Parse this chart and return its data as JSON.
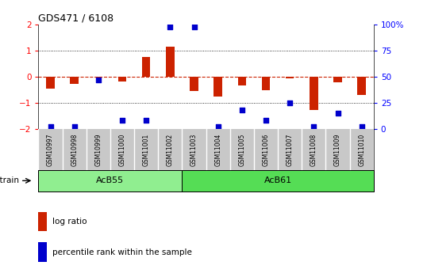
{
  "title": "GDS471 / 6108",
  "samples": [
    "GSM10997",
    "GSM10998",
    "GSM10999",
    "GSM11000",
    "GSM11001",
    "GSM11002",
    "GSM11003",
    "GSM11004",
    "GSM11005",
    "GSM11006",
    "GSM11007",
    "GSM11008",
    "GSM11009",
    "GSM11010"
  ],
  "log_ratio": [
    -0.45,
    -0.28,
    -0.04,
    -0.18,
    0.75,
    1.15,
    -0.55,
    -0.78,
    -0.35,
    -0.52,
    -0.06,
    -1.28,
    -0.22,
    -0.72
  ],
  "percentile_rank": [
    2,
    2,
    47,
    8,
    8,
    98,
    98,
    2,
    18,
    8,
    25,
    2,
    15,
    2
  ],
  "groups": [
    {
      "label": "AcB55",
      "start": 0,
      "end": 5,
      "color": "#90EE90"
    },
    {
      "label": "AcB61",
      "start": 6,
      "end": 13,
      "color": "#55DD55"
    }
  ],
  "group_label": "strain",
  "ylim_left": [
    -2,
    2
  ],
  "ylim_right": [
    0,
    100
  ],
  "yticks_left": [
    -2,
    -1,
    0,
    1,
    2
  ],
  "yticks_right": [
    0,
    25,
    50,
    75,
    100
  ],
  "yticklabels_right": [
    "0",
    "25",
    "50",
    "75",
    "100%"
  ],
  "bar_color": "#CC2200",
  "dot_color": "#0000CC",
  "zero_line_color": "#CC2200",
  "dotted_line_color": "#000000",
  "background_color": "#ffffff",
  "label_bg_color": "#c8c8c8",
  "bar_width": 0.35
}
